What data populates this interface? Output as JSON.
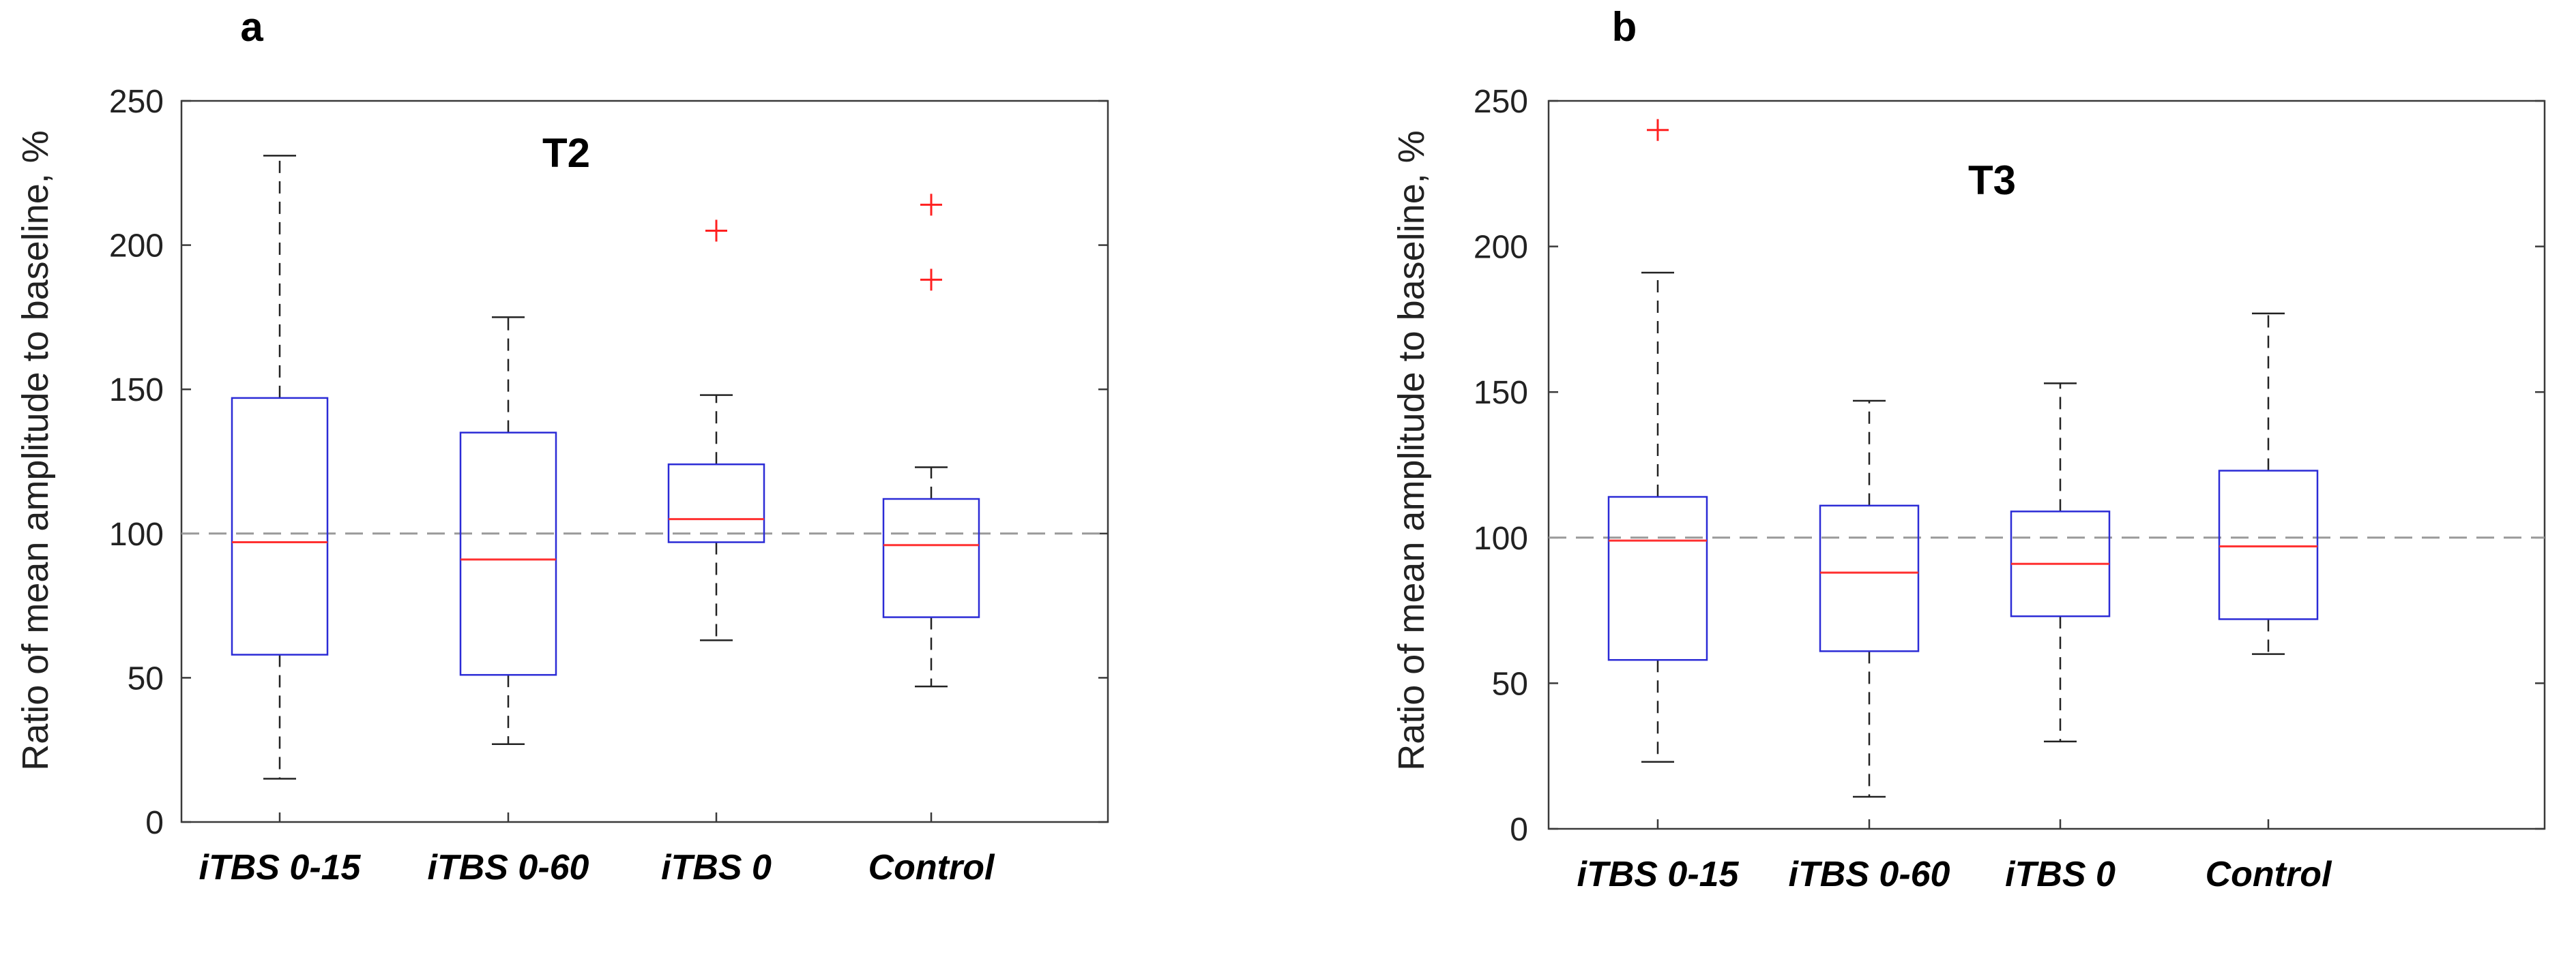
{
  "chart_data": [
    {
      "type": "box",
      "panel_label": "a",
      "title": "T2",
      "ylabel": "Ratio of mean amplitude to baseline, %",
      "xlabel": "",
      "ylim": [
        0,
        250
      ],
      "yticks": [
        0,
        50,
        100,
        150,
        200,
        250
      ],
      "reference_line": 100,
      "categories": [
        "iTBS 0-15",
        "iTBS 0-60",
        "iTBS 0",
        "Control"
      ],
      "boxes": [
        {
          "category": "iTBS 0-15",
          "whisker_low": 15,
          "q1": 58,
          "median": 97,
          "q3": 147,
          "whisker_high": 231,
          "outliers": []
        },
        {
          "category": "iTBS 0-60",
          "whisker_low": 27,
          "q1": 51,
          "median": 91,
          "q3": 135,
          "whisker_high": 175,
          "outliers": []
        },
        {
          "category": "iTBS 0",
          "whisker_low": 63,
          "q1": 97,
          "median": 105,
          "q3": 124,
          "whisker_high": 148,
          "outliers": [
            205
          ]
        },
        {
          "category": "Control",
          "whisker_low": 47,
          "q1": 71,
          "median": 96,
          "q3": 112,
          "whisker_high": 123,
          "outliers": [
            188,
            214
          ]
        }
      ]
    },
    {
      "type": "box",
      "panel_label": "b",
      "title": "T3",
      "ylabel": "Ratio of mean amplitude to baseline, %",
      "xlabel": "",
      "ylim": [
        0,
        250
      ],
      "yticks": [
        0,
        50,
        100,
        150,
        200,
        250
      ],
      "reference_line": 100,
      "categories": [
        "iTBS 0-15",
        "iTBS 0-60",
        "iTBS 0",
        "Control"
      ],
      "boxes": [
        {
          "category": "iTBS 0-15",
          "whisker_low": 23,
          "q1": 58,
          "median": 99,
          "q3": 114,
          "whisker_high": 191,
          "outliers": [
            240
          ]
        },
        {
          "category": "iTBS 0-60",
          "whisker_low": 11,
          "q1": 61,
          "median": 88,
          "q3": 111,
          "whisker_high": 147,
          "outliers": []
        },
        {
          "category": "iTBS 0",
          "whisker_low": 30,
          "q1": 73,
          "median": 91,
          "q3": 109,
          "whisker_high": 153,
          "outliers": []
        },
        {
          "category": "Control",
          "whisker_low": 60,
          "q1": 72,
          "median": 97,
          "q3": 123,
          "whisker_high": 177,
          "outliers": []
        }
      ]
    }
  ],
  "colors": {
    "box": "#2b2bd6",
    "median": "#ff3030",
    "outlier": "#ff2020",
    "whisker": "#222222",
    "reference": "#9a9a9a"
  }
}
